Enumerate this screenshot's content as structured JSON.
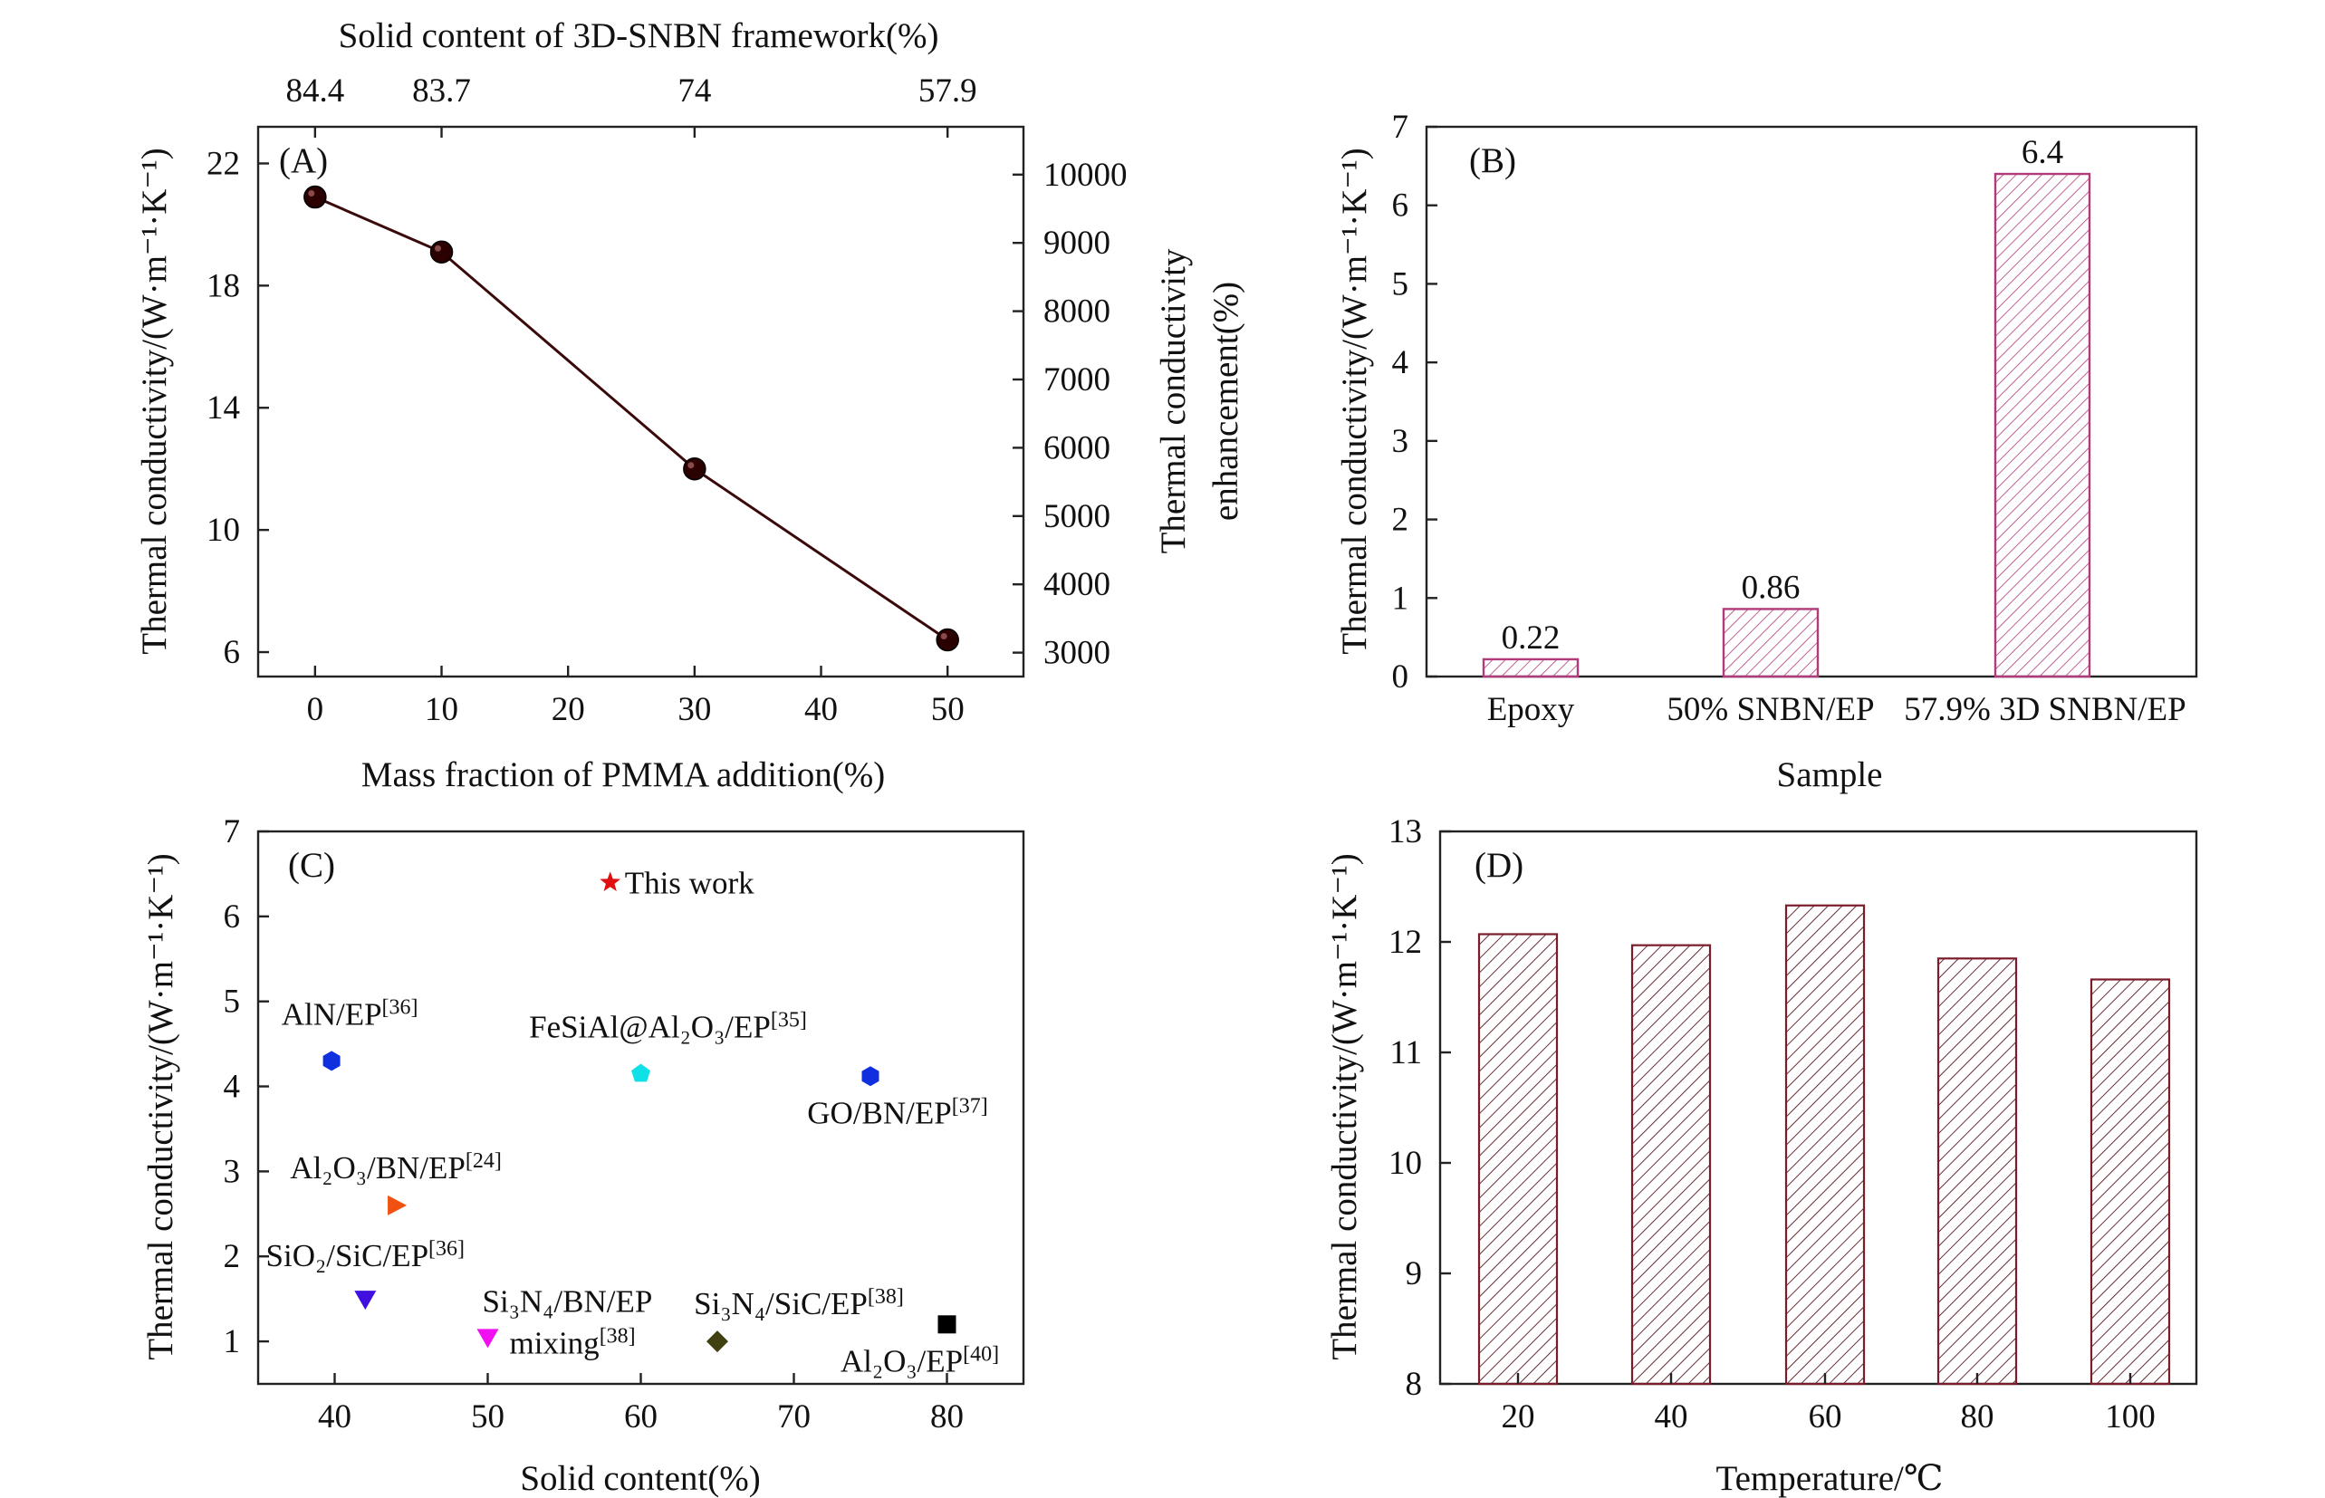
{
  "colors": {
    "line_a": "#3a0a0a",
    "marker_a": "#2b0000",
    "bar_b": "#b03a7a",
    "bar_d": "#7a1c2a",
    "axis": "#222222"
  },
  "chart_data": [
    {
      "panel": "A",
      "type": "line",
      "tag": "(A)",
      "xlabel": "Mass fraction of PMMA addition(%)",
      "ylabel": "Thermal conductivity/(W·m⁻¹·K⁻¹)",
      "top_xlabel": "Solid content of 3D-SNBN framework(%)",
      "right_ylabel_line1": "Thermal conductivity",
      "right_ylabel_line2": "enhancement(%)",
      "x": [
        0,
        10,
        30,
        50
      ],
      "y": [
        20.9,
        19.1,
        12.0,
        6.4
      ],
      "xlim": [
        -4.5,
        56
      ],
      "ylim": [
        5.2,
        23.2
      ],
      "xticks": [
        0,
        10,
        20,
        30,
        40,
        50
      ],
      "yticks": [
        6,
        10,
        14,
        18,
        22
      ],
      "top_ticks": [
        {
          "x": 0,
          "label": "84.4"
        },
        {
          "x": 10,
          "label": "83.7"
        },
        {
          "x": 30,
          "label": "74"
        },
        {
          "x": 50,
          "label": "57.9"
        }
      ],
      "right_ticks": [
        3000,
        4000,
        5000,
        6000,
        7000,
        8000,
        9000,
        10000
      ],
      "right_ylim": [
        2650,
        10700
      ]
    },
    {
      "panel": "B",
      "type": "bar",
      "tag": "(B)",
      "xlabel": "Sample",
      "ylabel": "Thermal conductivity/(W·m⁻¹·K⁻¹)",
      "categories": [
        "Epoxy",
        "50% SNBN/EP",
        "57.9% 3D SNBN/EP"
      ],
      "values": [
        0.22,
        0.86,
        6.4
      ],
      "value_labels": [
        "0.22",
        "0.86",
        "6.4"
      ],
      "ylim": [
        0,
        7
      ],
      "yticks": [
        0,
        1,
        2,
        3,
        4,
        5,
        6,
        7
      ]
    },
    {
      "panel": "C",
      "type": "scatter",
      "tag": "(C)",
      "xlabel": "Solid content(%)",
      "ylabel": "Thermal conductivity/(W·m⁻¹·K⁻¹)",
      "xlim": [
        35,
        85
      ],
      "ylim": [
        0.5,
        7
      ],
      "xticks": [
        40,
        50,
        60,
        70,
        80
      ],
      "yticks": [
        1,
        2,
        3,
        4,
        5,
        6,
        7
      ],
      "points": [
        {
          "name": "This work",
          "x": 58,
          "y": 6.4,
          "marker": "star",
          "color": "#e01010",
          "label_lines": [
            {
              "text": "This work",
              "sup": ""
            }
          ]
        },
        {
          "name": "AlN/EP",
          "x": 39.8,
          "y": 4.3,
          "marker": "hexagon",
          "color": "#1030e0",
          "label_lines": [
            {
              "text": "AlN/EP",
              "sup": "[36]"
            }
          ]
        },
        {
          "name": "FeSiAl@Al2O3/EP",
          "x": 60,
          "y": 4.15,
          "marker": "pentagon",
          "color": "#10e0e8",
          "label_lines": [
            {
              "text": "FeSiAl@Al₂O₃/EP",
              "sup": "[35]"
            }
          ]
        },
        {
          "name": "GO/BN/EP",
          "x": 75,
          "y": 4.12,
          "marker": "hexagon",
          "color": "#1030e0",
          "label_lines": [
            {
              "text": "GO/BN/EP",
              "sup": "[37]"
            }
          ]
        },
        {
          "name": "Al2O3/BN/EP",
          "x": 44,
          "y": 2.6,
          "marker": "triangle-right",
          "color": "#f05010",
          "label_lines": [
            {
              "text": "Al₂O₃/BN/EP",
              "sup": "[24]"
            }
          ]
        },
        {
          "name": "SiO2/SiC/EP",
          "x": 42,
          "y": 1.5,
          "marker": "triangle-down",
          "color": "#4010e0",
          "label_lines": [
            {
              "text": "SiO₂/SiC/EP",
              "sup": "[36]"
            }
          ]
        },
        {
          "name": "Si3N4/BN/EP mixing",
          "x": 50,
          "y": 1.05,
          "marker": "triangle-down",
          "color": "#f010f0",
          "label_lines": [
            {
              "text": "Si₃N₄/BN/EP",
              "sup": ""
            },
            {
              "text": "mixing",
              "sup": "[38]"
            }
          ]
        },
        {
          "name": "Si3N4/SiC/EP",
          "x": 65,
          "y": 1.0,
          "marker": "diamond",
          "color": "#404010",
          "label_lines": [
            {
              "text": "Si₃N₄/SiC/EP",
              "sup": "[38]"
            }
          ]
        },
        {
          "name": "Al2O3/EP",
          "x": 80,
          "y": 1.2,
          "marker": "square",
          "color": "#000000",
          "label_lines": [
            {
              "text": "Al₂O₃/EP",
              "sup": "[40]"
            }
          ]
        }
      ]
    },
    {
      "panel": "D",
      "type": "bar",
      "tag": "(D)",
      "xlabel": "Temperature/℃",
      "ylabel": "Thermal conductivity/(W·m⁻¹·K⁻¹)",
      "categories": [
        "20",
        "40",
        "60",
        "80",
        "100"
      ],
      "values": [
        12.07,
        11.97,
        12.33,
        11.85,
        11.66
      ],
      "ylim": [
        8,
        13
      ],
      "yticks": [
        8,
        9,
        10,
        11,
        12,
        13
      ]
    }
  ]
}
